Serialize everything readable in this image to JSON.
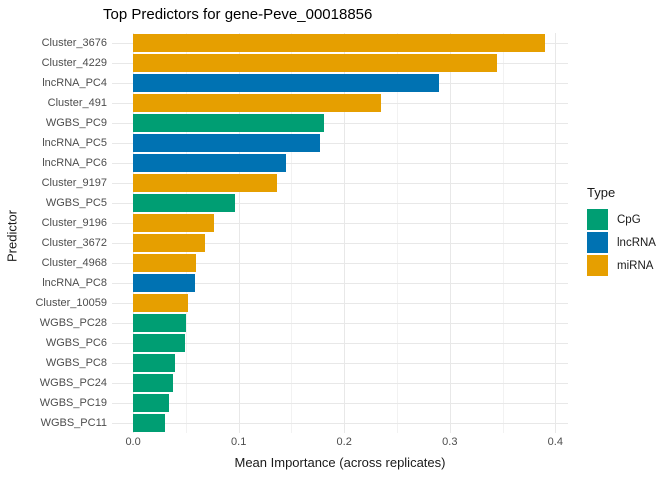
{
  "chart_data": {
    "type": "bar",
    "orientation": "horizontal",
    "title": "Top Predictors for gene-Peve_00018856",
    "xlabel": "Mean Importance (across replicates)",
    "ylabel": "Predictor",
    "xlim": [
      -0.02,
      0.412
    ],
    "grid": true,
    "x_major_ticks": [
      {
        "value": 0.0,
        "label": "0.0"
      },
      {
        "value": 0.1,
        "label": "0.1"
      },
      {
        "value": 0.2,
        "label": "0.2"
      },
      {
        "value": 0.3,
        "label": "0.3"
      },
      {
        "value": 0.4,
        "label": "0.4"
      }
    ],
    "x_minor_ticks": [
      0.05,
      0.15,
      0.25,
      0.35
    ],
    "legend": {
      "title": "Type",
      "position": "right",
      "entries": [
        {
          "label": "CpG",
          "color": "#009E73"
        },
        {
          "label": "lncRNA",
          "color": "#0072B2"
        },
        {
          "label": "miRNA",
          "color": "#E69F00"
        }
      ]
    },
    "bars": [
      {
        "label": "Cluster_3676",
        "value": 0.39,
        "type": "miRNA"
      },
      {
        "label": "Cluster_4229",
        "value": 0.345,
        "type": "miRNA"
      },
      {
        "label": "lncRNA_PC4",
        "value": 0.29,
        "type": "lncRNA"
      },
      {
        "label": "Cluster_491",
        "value": 0.235,
        "type": "miRNA"
      },
      {
        "label": "WGBS_PC9",
        "value": 0.181,
        "type": "CpG"
      },
      {
        "label": "lncRNA_PC5",
        "value": 0.177,
        "type": "lncRNA"
      },
      {
        "label": "lncRNA_PC6",
        "value": 0.145,
        "type": "lncRNA"
      },
      {
        "label": "Cluster_9197",
        "value": 0.136,
        "type": "miRNA"
      },
      {
        "label": "WGBS_PC5",
        "value": 0.097,
        "type": "CpG"
      },
      {
        "label": "Cluster_9196",
        "value": 0.077,
        "type": "miRNA"
      },
      {
        "label": "Cluster_3672",
        "value": 0.068,
        "type": "miRNA"
      },
      {
        "label": "Cluster_4968",
        "value": 0.06,
        "type": "miRNA"
      },
      {
        "label": "lncRNA_PC8",
        "value": 0.059,
        "type": "lncRNA"
      },
      {
        "label": "Cluster_10059",
        "value": 0.052,
        "type": "miRNA"
      },
      {
        "label": "WGBS_PC28",
        "value": 0.05,
        "type": "CpG"
      },
      {
        "label": "WGBS_PC6",
        "value": 0.049,
        "type": "CpG"
      },
      {
        "label": "WGBS_PC8",
        "value": 0.04,
        "type": "CpG"
      },
      {
        "label": "WGBS_PC24",
        "value": 0.038,
        "type": "CpG"
      },
      {
        "label": "WGBS_PC19",
        "value": 0.034,
        "type": "CpG"
      },
      {
        "label": "WGBS_PC11",
        "value": 0.03,
        "type": "CpG"
      }
    ]
  }
}
